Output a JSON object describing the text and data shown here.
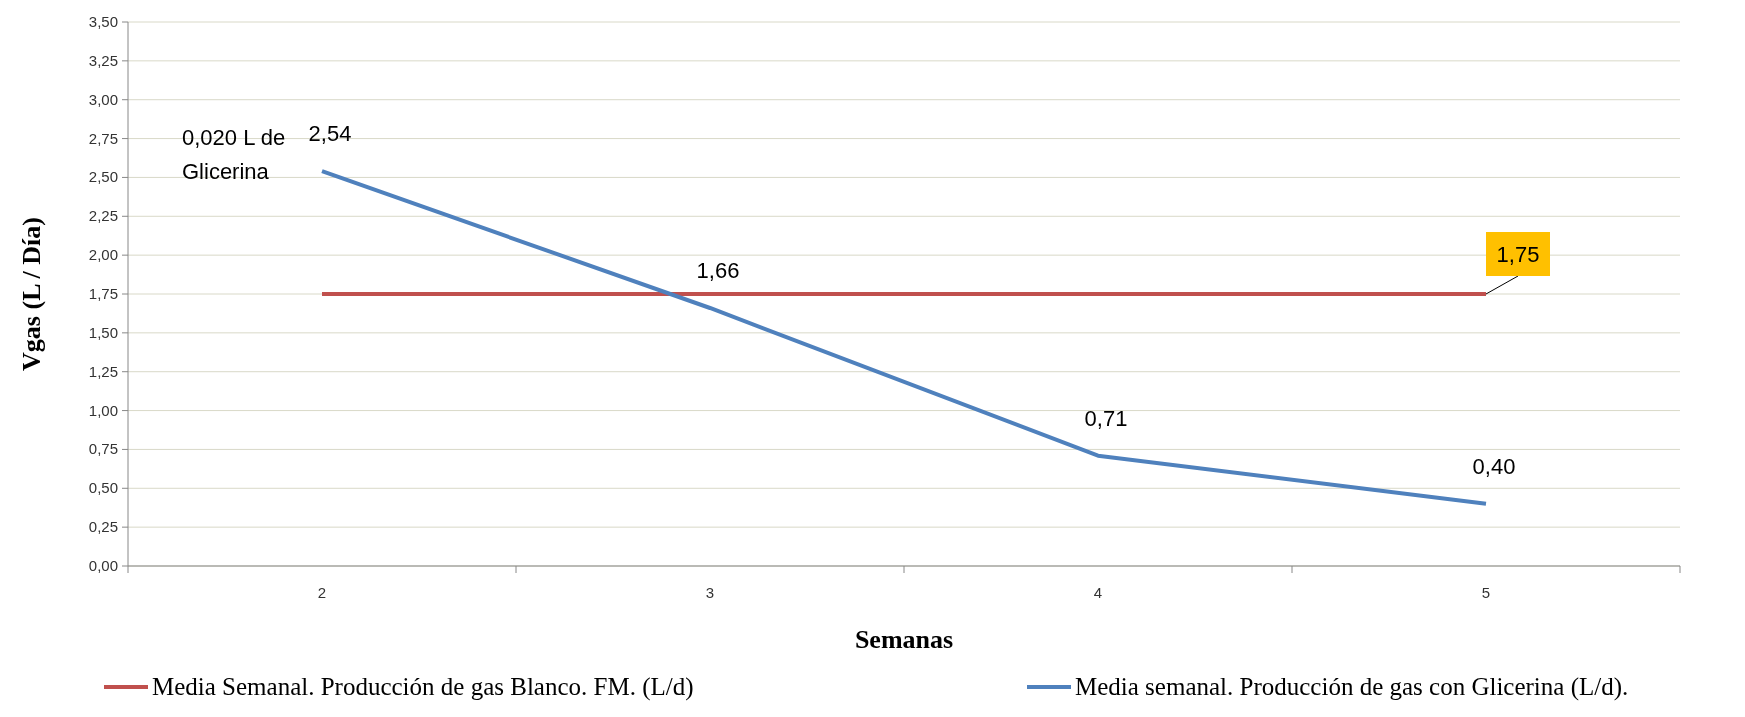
{
  "chart_data": {
    "type": "line",
    "xlabel": "Semanas",
    "ylabel": "Vgas (L / Día)",
    "categories": [
      "2",
      "3",
      "4",
      "5"
    ],
    "series": [
      {
        "name": "Media Semanal. Producción de gas Blanco. FM. (L/d)",
        "color": "#c0504d",
        "values": [
          1.75,
          1.75,
          1.75,
          1.75
        ],
        "value_labels": [
          null,
          null,
          null,
          "1,75"
        ]
      },
      {
        "name": "Media semanal. Producción de gas con Glicerina (L/d).",
        "color": "#4f81bd",
        "values": [
          2.54,
          1.66,
          0.71,
          0.4
        ],
        "value_labels": [
          "2,54",
          "1,66",
          "0,71",
          "0,40"
        ]
      }
    ],
    "ylim": [
      0,
      3.5
    ],
    "yticks": [
      {
        "value": 0,
        "label": "0,00"
      },
      {
        "value": 0.25,
        "label": "0,25"
      },
      {
        "value": 0.5,
        "label": "0,50"
      },
      {
        "value": 0.75,
        "label": "0,75"
      },
      {
        "value": 1,
        "label": "1,00"
      },
      {
        "value": 1.25,
        "label": "1,25"
      },
      {
        "value": 1.5,
        "label": "1,50"
      },
      {
        "value": 1.75,
        "label": "1,75"
      },
      {
        "value": 2,
        "label": "2,00"
      },
      {
        "value": 2.25,
        "label": "2,25"
      },
      {
        "value": 2.5,
        "label": "2,50"
      },
      {
        "value": 2.75,
        "label": "2,75"
      },
      {
        "value": 3,
        "label": "3,00"
      },
      {
        "value": 3.25,
        "label": "3,25"
      },
      {
        "value": 3.5,
        "label": "3,50"
      }
    ],
    "grid": "y",
    "legend": "bottom",
    "marker": "none",
    "line_style": "solid",
    "annotations": [
      "0,020 L de Glicerina"
    ]
  }
}
